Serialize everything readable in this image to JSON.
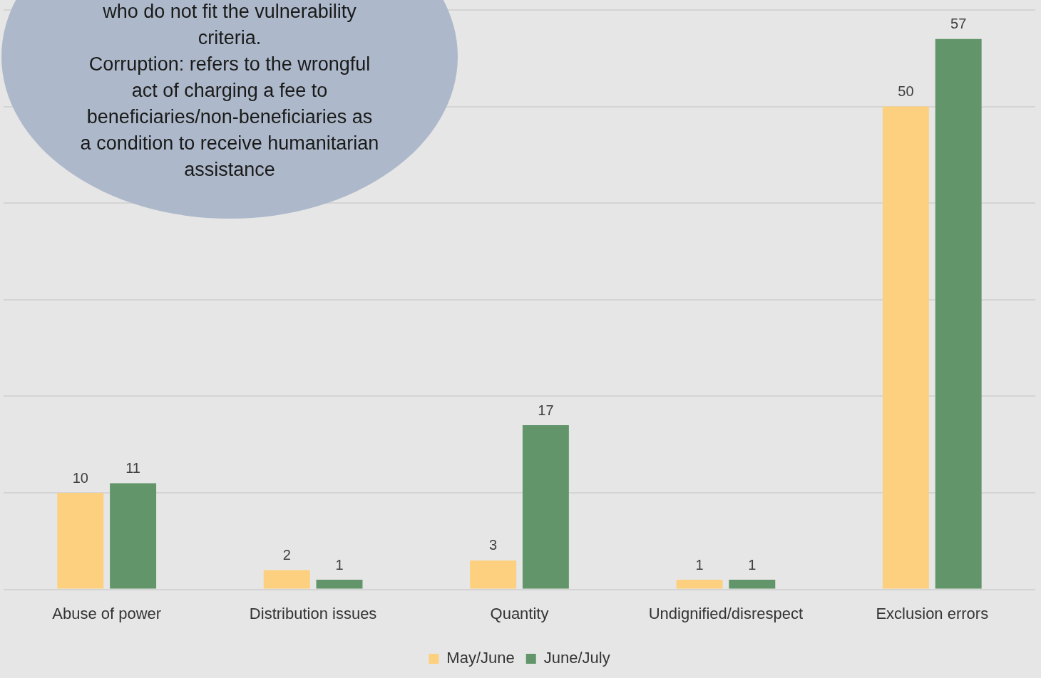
{
  "chart_data": {
    "type": "bar",
    "categories": [
      "Abuse of power",
      "Distribution issues",
      "Quantity",
      "Undignified/disrespect",
      "Exclusion errors"
    ],
    "series": [
      {
        "name": "May/June",
        "color": "#fdd07f",
        "values": [
          10,
          2,
          3,
          1,
          50
        ]
      },
      {
        "name": "June/July",
        "color": "#62956a",
        "values": [
          11,
          1,
          17,
          1,
          57
        ]
      }
    ],
    "ylim": [
      0,
      60
    ],
    "yticks": [
      0,
      10,
      20,
      30,
      40,
      50,
      60
    ],
    "tick_labels": "x",
    "grid": "y",
    "data_labels": true,
    "legend": "bottom",
    "annotations": [
      "who do not fit the vulnerability criteria.",
      "Corruption: refers to the wrongful act of charging a fee to beneficiaries/non-beneficiaries as a condition to receive humanitarian assistance"
    ]
  }
}
